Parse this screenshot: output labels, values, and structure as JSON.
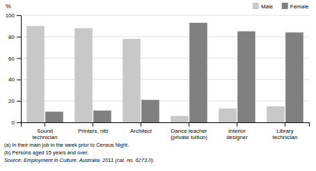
{
  "chart_data": {
    "type": "bar",
    "categories": [
      "Sound\ntechnician",
      "Printers, nfd",
      "Architect",
      "Dance teacher\n(private tuition)",
      "Interior\ndesigner",
      "Library\ntechnician"
    ],
    "series": [
      {
        "name": "Male",
        "color": "#c8c8c8",
        "values": [
          90,
          88,
          78,
          6,
          13,
          15
        ]
      },
      {
        "name": "Female",
        "color": "#808080",
        "values": [
          10,
          11,
          21,
          93,
          85,
          84
        ]
      }
    ],
    "ylim": [
      0,
      100
    ],
    "yticks": [
      0,
      20,
      40,
      60,
      80,
      100
    ],
    "y_label": "%",
    "grid": true,
    "legend": "upper-right",
    "footnotes": [
      "(a) In their main job in the week prior to Census Night.",
      "(b) Persons aged 15 years and over."
    ],
    "source": "Source: Employment in Culture, Australia, 2011 (cat. no. 6273.0)."
  }
}
